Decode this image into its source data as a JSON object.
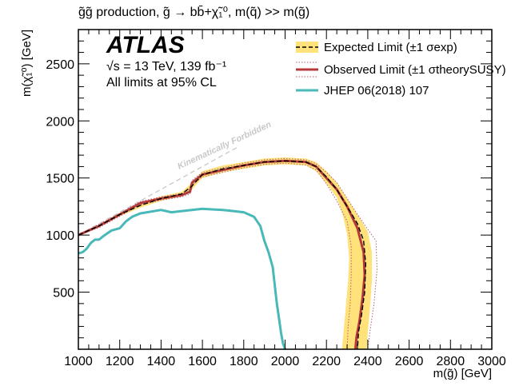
{
  "chart_data": {
    "type": "line",
    "title": "g̃g̃ production, g̃ → bb̄+χ̃₁⁰, m(q̃) >> m(g̃)",
    "xlabel": "m(g̃) [GeV]",
    "ylabel": "m(χ̃₁⁰) [GeV]",
    "xlim": [
      1000,
      3000
    ],
    "ylim": [
      0,
      2800
    ],
    "x_ticks": [
      1000,
      1200,
      1400,
      1600,
      1800,
      2000,
      2200,
      2400,
      2600,
      2800,
      3000
    ],
    "x_tick_labels": [
      "1000",
      "1200",
      "1400",
      "1600",
      "1800",
      "2000",
      "2200",
      "2400",
      "2600",
      "2800",
      "3000"
    ],
    "y_ticks": [
      500,
      1000,
      1500,
      2000,
      2500
    ],
    "y_tick_labels": [
      "500",
      "1000",
      "1500",
      "2000",
      "2500"
    ],
    "grid": false,
    "legend_position": "top-right",
    "annotations": {
      "atlas": "ATLAS",
      "energy_line": "√s = 13 TeV, 139 fb⁻¹",
      "cl_line": "All limits at 95% CL",
      "kinematic": "Kinematically Forbidden"
    },
    "legend": [
      {
        "label": "Expected Limit (±1 σexp)",
        "style": "dashed-band"
      },
      {
        "label": "Observed Limit (±1 σtheorySUSY)",
        "style": "solid-dotted"
      },
      {
        "label": "JHEP 06(2018) 107",
        "style": "solid"
      }
    ],
    "colors": {
      "band": "#ffe27a",
      "observed": "#b43a3a",
      "theory": "#b0607a",
      "expected": "#000000",
      "previous": "#48b8b8",
      "forbidden": "#c8c8c8"
    },
    "series": [
      {
        "name": "Expected Limit",
        "points": [
          [
            1000,
            1000
          ],
          [
            1100,
            1080
          ],
          [
            1200,
            1180
          ],
          [
            1300,
            1260
          ],
          [
            1400,
            1320
          ],
          [
            1500,
            1360
          ],
          [
            1550,
            1430
          ],
          [
            1600,
            1530
          ],
          [
            1700,
            1580
          ],
          [
            1800,
            1610
          ],
          [
            1900,
            1640
          ],
          [
            2000,
            1650
          ],
          [
            2100,
            1640
          ],
          [
            2150,
            1600
          ],
          [
            2200,
            1510
          ],
          [
            2250,
            1400
          ],
          [
            2300,
            1250
          ],
          [
            2350,
            1100
          ],
          [
            2380,
            950
          ],
          [
            2390,
            750
          ],
          [
            2385,
            500
          ],
          [
            2370,
            300
          ],
          [
            2355,
            150
          ],
          [
            2350,
            0
          ]
        ]
      },
      {
        "name": "Expected band upper",
        "points": [
          [
            1000,
            1000
          ],
          [
            1100,
            1090
          ],
          [
            1200,
            1195
          ],
          [
            1300,
            1280
          ],
          [
            1400,
            1340
          ],
          [
            1500,
            1380
          ],
          [
            1550,
            1460
          ],
          [
            1600,
            1560
          ],
          [
            1700,
            1610
          ],
          [
            1800,
            1640
          ],
          [
            1900,
            1670
          ],
          [
            2000,
            1680
          ],
          [
            2100,
            1670
          ],
          [
            2150,
            1640
          ],
          [
            2200,
            1560
          ],
          [
            2250,
            1460
          ],
          [
            2300,
            1320
          ],
          [
            2350,
            1180
          ],
          [
            2400,
            1030
          ],
          [
            2420,
            850
          ],
          [
            2420,
            600
          ],
          [
            2410,
            350
          ],
          [
            2400,
            150
          ],
          [
            2395,
            0
          ]
        ]
      },
      {
        "name": "Expected band lower",
        "points": [
          [
            1000,
            1000
          ],
          [
            1100,
            1070
          ],
          [
            1200,
            1165
          ],
          [
            1300,
            1240
          ],
          [
            1400,
            1300
          ],
          [
            1500,
            1340
          ],
          [
            1550,
            1400
          ],
          [
            1600,
            1500
          ],
          [
            1700,
            1550
          ],
          [
            1800,
            1580
          ],
          [
            1900,
            1610
          ],
          [
            2000,
            1620
          ],
          [
            2100,
            1610
          ],
          [
            2150,
            1560
          ],
          [
            2200,
            1450
          ],
          [
            2250,
            1330
          ],
          [
            2280,
            1170
          ],
          [
            2300,
            1000
          ],
          [
            2310,
            800
          ],
          [
            2305,
            600
          ],
          [
            2295,
            400
          ],
          [
            2285,
            200
          ],
          [
            2275,
            0
          ]
        ]
      },
      {
        "name": "Observed Limit",
        "points": [
          [
            1000,
            1000
          ],
          [
            1100,
            1080
          ],
          [
            1200,
            1180
          ],
          [
            1300,
            1280
          ],
          [
            1400,
            1320
          ],
          [
            1500,
            1350
          ],
          [
            1540,
            1380
          ],
          [
            1550,
            1460
          ],
          [
            1600,
            1530
          ],
          [
            1700,
            1570
          ],
          [
            1800,
            1610
          ],
          [
            1900,
            1640
          ],
          [
            2000,
            1650
          ],
          [
            2100,
            1640
          ],
          [
            2150,
            1600
          ],
          [
            2200,
            1500
          ],
          [
            2250,
            1400
          ],
          [
            2300,
            1250
          ],
          [
            2350,
            1060
          ],
          [
            2380,
            850
          ],
          [
            2385,
            650
          ],
          [
            2375,
            450
          ],
          [
            2360,
            250
          ],
          [
            2345,
            100
          ],
          [
            2340,
            0
          ]
        ]
      },
      {
        "name": "Observed theory upper",
        "points": [
          [
            1000,
            1000
          ],
          [
            1100,
            1095
          ],
          [
            1200,
            1190
          ],
          [
            1300,
            1295
          ],
          [
            1400,
            1335
          ],
          [
            1500,
            1365
          ],
          [
            1540,
            1400
          ],
          [
            1550,
            1480
          ],
          [
            1600,
            1550
          ],
          [
            1700,
            1590
          ],
          [
            1800,
            1630
          ],
          [
            1900,
            1660
          ],
          [
            2000,
            1670
          ],
          [
            2100,
            1660
          ],
          [
            2150,
            1625
          ],
          [
            2200,
            1550
          ],
          [
            2250,
            1460
          ],
          [
            2300,
            1320
          ],
          [
            2350,
            1180
          ],
          [
            2400,
            1050
          ],
          [
            2440,
            950
          ],
          [
            2445,
            700
          ],
          [
            2430,
            400
          ],
          [
            2410,
            150
          ],
          [
            2400,
            0
          ]
        ]
      },
      {
        "name": "Observed theory lower",
        "points": [
          [
            1000,
            1000
          ],
          [
            1100,
            1065
          ],
          [
            1200,
            1165
          ],
          [
            1300,
            1265
          ],
          [
            1400,
            1305
          ],
          [
            1500,
            1335
          ],
          [
            1540,
            1360
          ],
          [
            1550,
            1440
          ],
          [
            1600,
            1510
          ],
          [
            1700,
            1550
          ],
          [
            1800,
            1590
          ],
          [
            1900,
            1620
          ],
          [
            2000,
            1630
          ],
          [
            2100,
            1615
          ],
          [
            2150,
            1570
          ],
          [
            2200,
            1450
          ],
          [
            2250,
            1300
          ],
          [
            2300,
            1120
          ],
          [
            2320,
            900
          ],
          [
            2320,
            650
          ],
          [
            2315,
            400
          ],
          [
            2305,
            200
          ],
          [
            2300,
            0
          ]
        ]
      },
      {
        "name": "JHEP 06(2018) 107",
        "points": [
          [
            1000,
            840
          ],
          [
            1020,
            850
          ],
          [
            1040,
            880
          ],
          [
            1060,
            930
          ],
          [
            1080,
            960
          ],
          [
            1100,
            960
          ],
          [
            1120,
            990
          ],
          [
            1160,
            1040
          ],
          [
            1200,
            1060
          ],
          [
            1230,
            1120
          ],
          [
            1260,
            1160
          ],
          [
            1300,
            1190
          ],
          [
            1400,
            1220
          ],
          [
            1450,
            1200
          ],
          [
            1500,
            1210
          ],
          [
            1600,
            1230
          ],
          [
            1700,
            1220
          ],
          [
            1750,
            1210
          ],
          [
            1800,
            1200
          ],
          [
            1850,
            1160
          ],
          [
            1880,
            1080
          ],
          [
            1900,
            950
          ],
          [
            1920,
            850
          ],
          [
            1940,
            720
          ],
          [
            1950,
            560
          ],
          [
            1960,
            400
          ],
          [
            1970,
            280
          ],
          [
            1980,
            150
          ],
          [
            1990,
            50
          ],
          [
            2000,
            0
          ]
        ]
      },
      {
        "name": "Kinematically Forbidden",
        "points": [
          [
            1000,
            1000
          ],
          [
            1775,
            1775
          ]
        ]
      }
    ]
  }
}
